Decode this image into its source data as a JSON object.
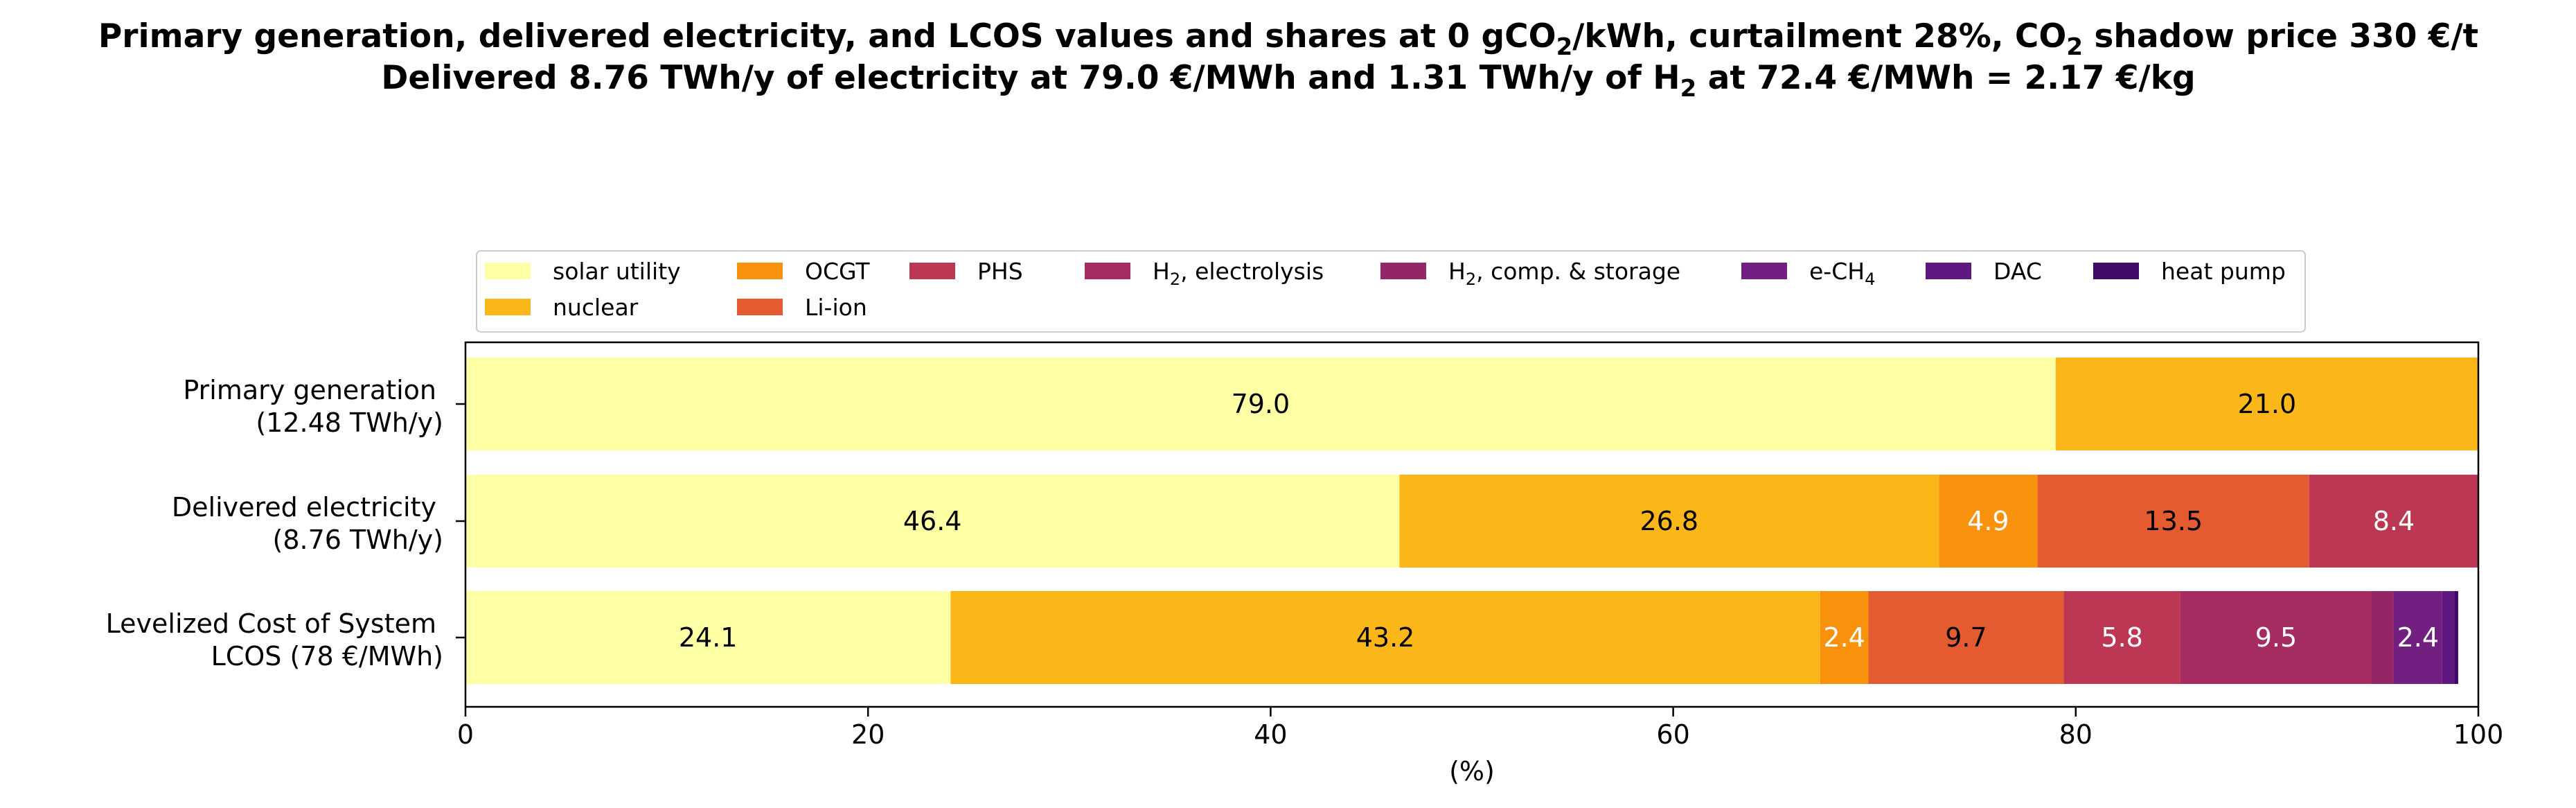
{
  "title": {
    "line1": {
      "a": "Primary generation, delivered electricity, and LCOS values and shares at 0 gCO",
      "sub1": "2",
      "b": "/kWh, curtailment 28%, CO",
      "sub2": "2",
      "c": " shadow price 330 €/t"
    },
    "line2": {
      "a": "Delivered 8.76 TWh/y of electricity at 79.0 €/MWh and 1.31 TWh/y of H",
      "sub": "2",
      "b": " at 72.4 €/MWh = 2.17 €/kg"
    }
  },
  "chart_data": {
    "type": "bar",
    "orientation": "horizontal",
    "stacked": true,
    "xlabel": "(%)",
    "xlim": [
      0,
      100
    ],
    "xticks": [
      "0",
      "20",
      "40",
      "60",
      "80",
      "100"
    ],
    "legend_placement": "above plot, centered",
    "categories": [
      {
        "line1": "Primary generation",
        "line2": "(12.48 TWh/y)"
      },
      {
        "line1": "Delivered electricity",
        "line2": "(8.76 TWh/y)"
      },
      {
        "line1": "Levelized Cost of System",
        "line2": "LCOS  (78 €/MWh)"
      }
    ],
    "series": [
      {
        "name": "solar utility",
        "color": "#fcffa4",
        "text_color": "#000000",
        "values": [
          79.0,
          46.4,
          24.1
        ],
        "labels": [
          "79.0",
          "46.4",
          "24.1"
        ]
      },
      {
        "name": "nuclear",
        "color": "#fbb61a",
        "text_color": "#000000",
        "values": [
          21.0,
          26.8,
          43.2
        ],
        "labels": [
          "21.0",
          "26.8",
          "43.2"
        ]
      },
      {
        "name": "OCGT",
        "color": "#f8920d",
        "text_color": "#ffffff",
        "values": [
          0,
          4.9,
          2.4
        ],
        "labels": [
          "",
          "4.9",
          "2.4"
        ]
      },
      {
        "name": "Li-ion",
        "color": "#e45a31",
        "text_color": "#000000",
        "values": [
          0,
          13.5,
          9.7
        ],
        "labels": [
          "",
          "13.5",
          "9.7"
        ]
      },
      {
        "name": "PHS",
        "color": "#bc3754",
        "text_color": "#ffffff",
        "values": [
          0,
          8.4,
          5.8
        ],
        "labels": [
          "",
          "8.4",
          "5.8"
        ]
      },
      {
        "name": "H",
        "name_sub": "2",
        "name_rest": ", electrolysis",
        "color": "#a52c60",
        "text_color": "#ffffff",
        "values": [
          0,
          0,
          9.5
        ],
        "labels": [
          "",
          "",
          "9.5"
        ]
      },
      {
        "name": "H",
        "name_sub": "2",
        "name_rest": ", comp. & storage",
        "color": "#932667",
        "text_color": "#ffffff",
        "values": [
          0,
          0,
          1.1
        ],
        "labels": [
          "",
          "",
          ""
        ]
      },
      {
        "name": "e-CH",
        "name_sub": "4",
        "name_rest": "",
        "color": "#721f81",
        "text_color": "#ffffff",
        "values": [
          0,
          0,
          2.4
        ],
        "labels": [
          "",
          "",
          "2.4"
        ]
      },
      {
        "name": "DAC",
        "color": "#5e177f",
        "text_color": "#ffffff",
        "values": [
          0,
          0,
          0.6
        ],
        "labels": [
          "",
          "",
          ""
        ]
      },
      {
        "name": "heat pump",
        "color": "#420a68",
        "text_color": "#ffffff",
        "values": [
          0,
          0,
          0.2
        ],
        "labels": [
          "",
          "",
          ""
        ]
      }
    ]
  }
}
